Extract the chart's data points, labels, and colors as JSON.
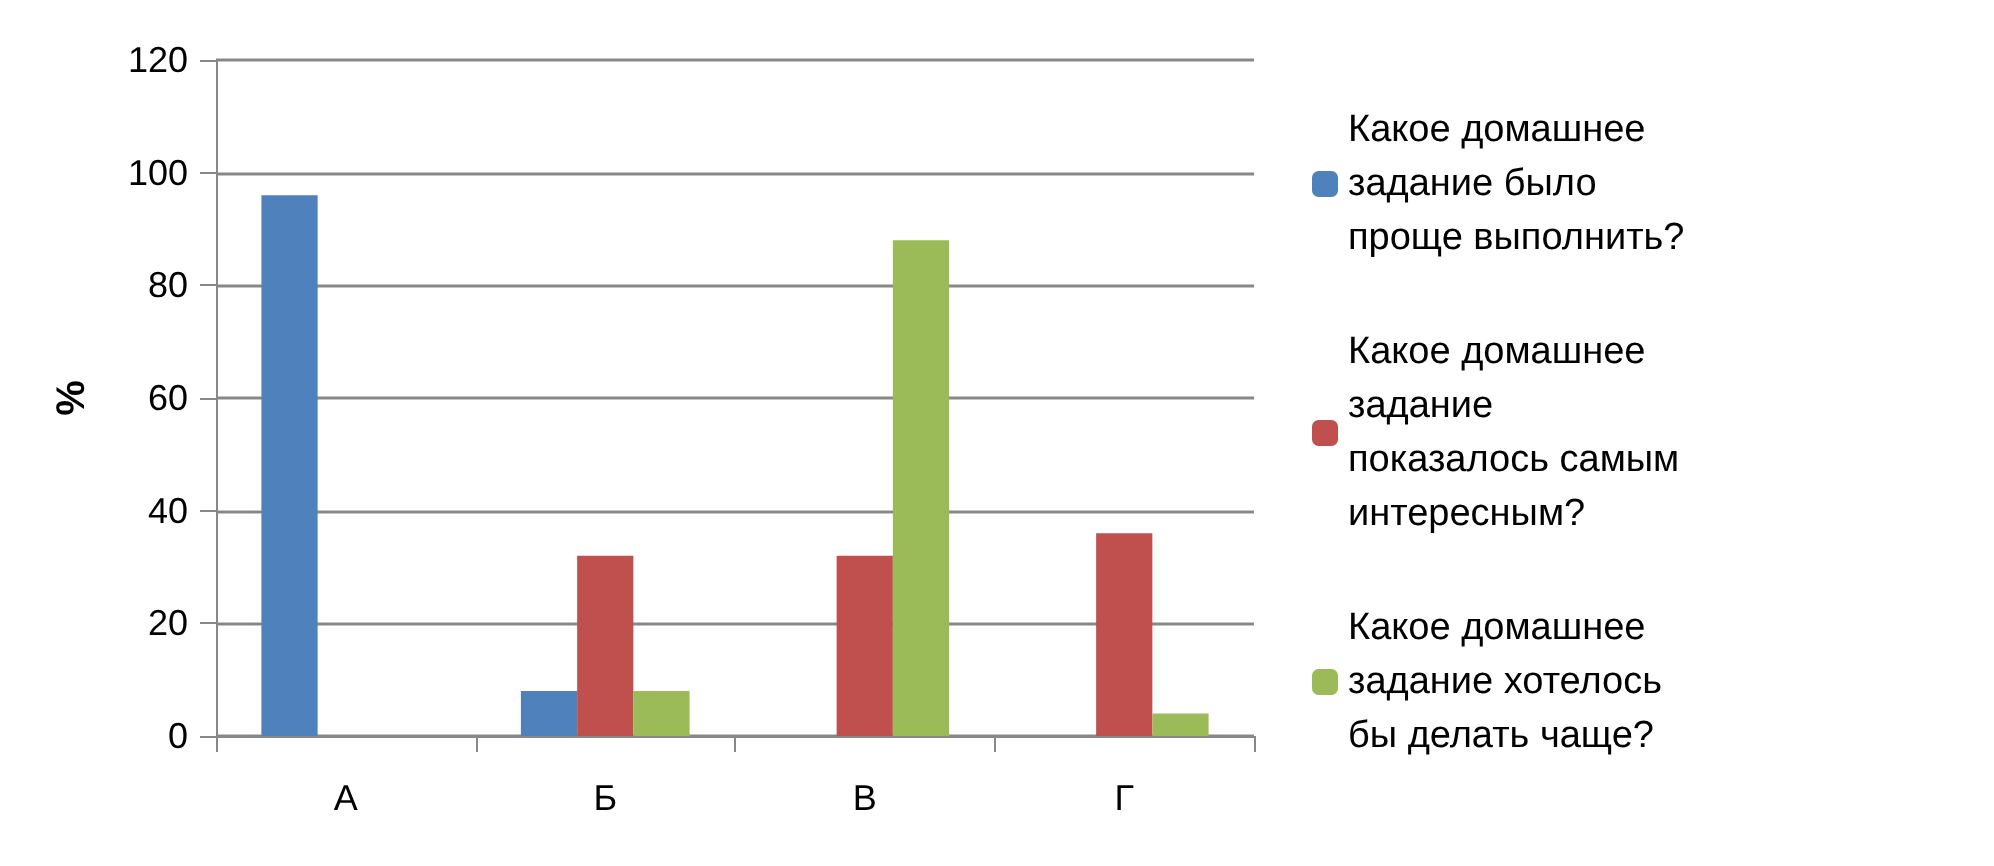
{
  "chart_data": {
    "type": "bar",
    "ylabel": "%",
    "categories": [
      "А",
      "Б",
      "В",
      "Г"
    ],
    "series": [
      {
        "name": "Какое домашнее задание было проще выполнить?",
        "color": "#4f81bd",
        "values": [
          96,
          8,
          0,
          0
        ]
      },
      {
        "name": "Какое домашнее задание показалось самым интересным?",
        "color": "#c0504d",
        "values": [
          0,
          32,
          32,
          36
        ]
      },
      {
        "name": "Какое домашнее задание хотелось бы делать чаще?",
        "color": "#9bbb59",
        "values": [
          0,
          8,
          88,
          4
        ]
      }
    ],
    "ylim": [
      0,
      120
    ],
    "yticks": [
      0,
      20,
      40,
      60,
      80,
      100,
      120
    ],
    "grid": "y",
    "legend": "right"
  }
}
